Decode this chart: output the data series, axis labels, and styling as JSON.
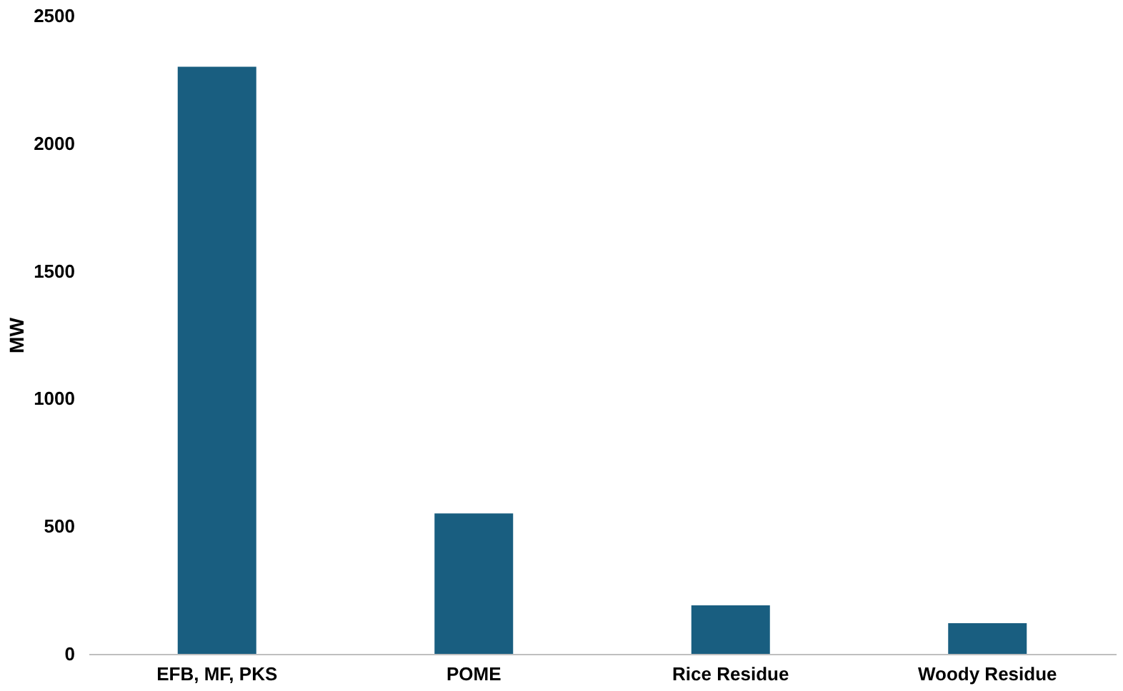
{
  "chart_data": {
    "type": "bar",
    "ylabel": "MW",
    "categories": [
      "EFB, MF, PKS",
      "POME",
      "Rice Residue",
      "Woody Residue"
    ],
    "values": [
      2300,
      550,
      190,
      120
    ],
    "color": "#195e80",
    "ylim": [
      0,
      2500
    ],
    "yticks": [
      0,
      500,
      1000,
      1500,
      2000,
      2500
    ],
    "grid": false
  }
}
